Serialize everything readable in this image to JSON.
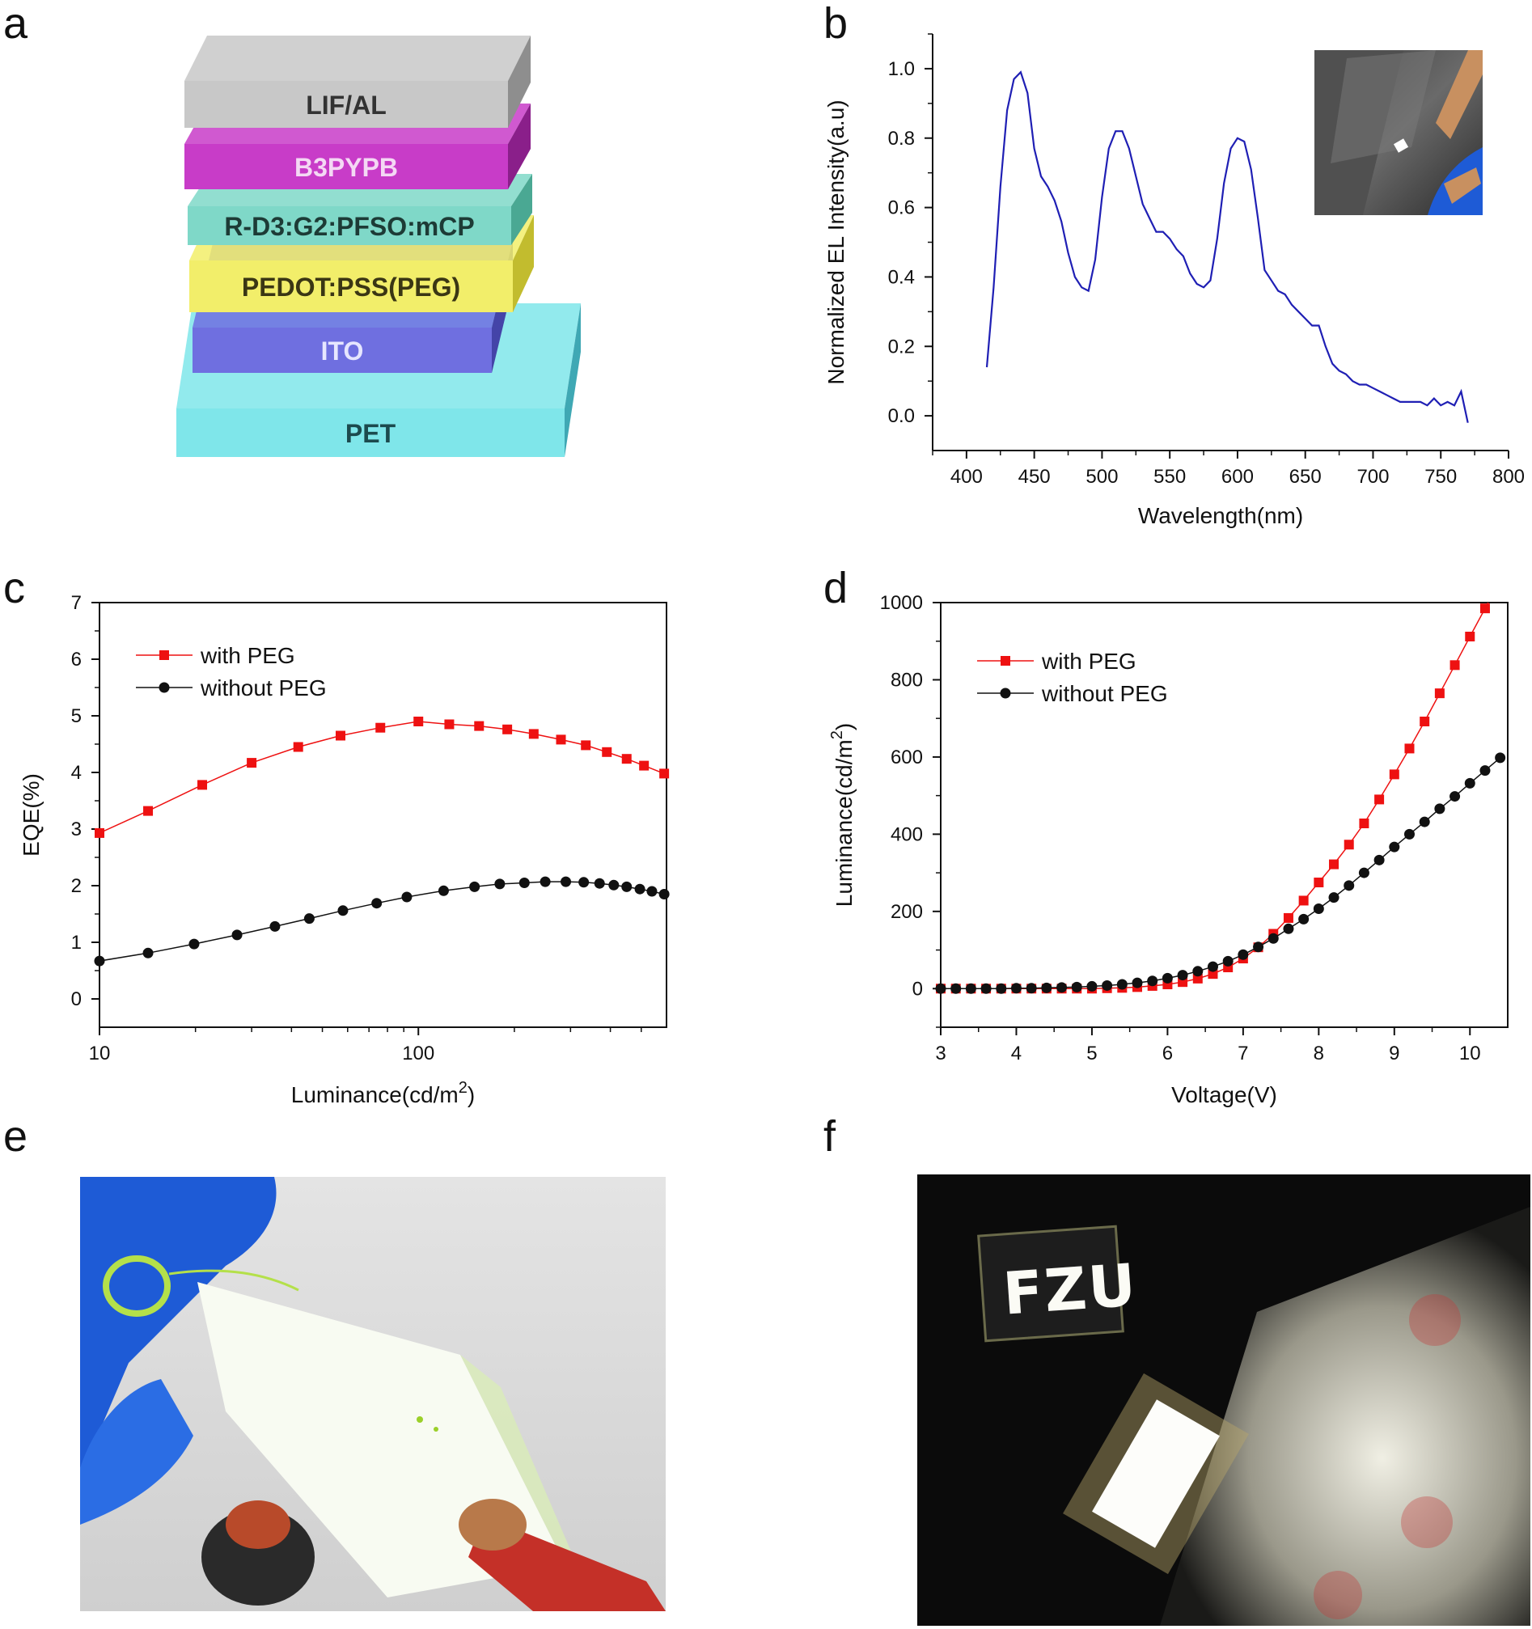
{
  "panels": {
    "a": "a",
    "b": "b",
    "c": "c",
    "d": "d",
    "e": "e",
    "f": "f"
  },
  "stack": {
    "layers": [
      {
        "label": "LIF/AL",
        "color": "#c8c8c8",
        "side": "#8e8e8e",
        "text_color": "#333333"
      },
      {
        "label": "B3PYPB",
        "color": "#c83cc8",
        "side": "#8a1f8a",
        "text_color": "#f4d8f4"
      },
      {
        "label": "R-D3:G2:PFSO:mCP",
        "color": "#7fd8c8",
        "side": "#4aa893",
        "text_color": "#1d3b36"
      },
      {
        "label": "PEDOT:PSS(PEG)",
        "color": "#f2ee6a",
        "side": "#c2bc2e",
        "text_color": "#3a3614"
      },
      {
        "label": "ITO",
        "color": "#6f6fe0",
        "side": "#4444a8",
        "text_color": "#e6e6ff"
      },
      {
        "label": "PET",
        "color": "#7fe6ea",
        "side": "#3fa8b4",
        "text_color": "#1c4a4e"
      }
    ]
  },
  "chart_data": [
    {
      "panel": "b",
      "type": "line",
      "xlabel": "Wavelength(nm)",
      "ylabel": "Normalized EL Intensity(a.u)",
      "xlim": [
        375,
        800
      ],
      "ylim": [
        -0.1,
        1.1
      ],
      "xticks": [
        400,
        450,
        500,
        550,
        600,
        650,
        700,
        750,
        800
      ],
      "yticks": [
        0.0,
        0.2,
        0.4,
        0.6,
        0.8,
        1.0
      ],
      "ytick_labels": [
        "0.0",
        "0.2",
        "0.4",
        "0.6",
        "0.8",
        "1.0"
      ],
      "series": [
        {
          "color": "#1f1fb4",
          "x": [
            415,
            420,
            425,
            430,
            435,
            440,
            445,
            450,
            455,
            460,
            465,
            470,
            475,
            480,
            485,
            490,
            495,
            500,
            505,
            510,
            515,
            520,
            525,
            530,
            535,
            540,
            545,
            550,
            555,
            560,
            565,
            570,
            575,
            580,
            585,
            590,
            595,
            600,
            605,
            610,
            615,
            620,
            625,
            630,
            635,
            640,
            645,
            650,
            655,
            660,
            665,
            670,
            675,
            680,
            685,
            690,
            695,
            700,
            705,
            710,
            715,
            720,
            725,
            730,
            735,
            740,
            745,
            750,
            755,
            760,
            765,
            770
          ],
          "y": [
            0.14,
            0.37,
            0.66,
            0.88,
            0.97,
            0.99,
            0.93,
            0.77,
            0.69,
            0.66,
            0.62,
            0.56,
            0.47,
            0.4,
            0.37,
            0.36,
            0.45,
            0.63,
            0.77,
            0.82,
            0.82,
            0.77,
            0.69,
            0.61,
            0.57,
            0.53,
            0.53,
            0.51,
            0.48,
            0.46,
            0.41,
            0.38,
            0.37,
            0.39,
            0.51,
            0.67,
            0.77,
            0.8,
            0.79,
            0.71,
            0.57,
            0.42,
            0.39,
            0.36,
            0.35,
            0.32,
            0.3,
            0.28,
            0.26,
            0.26,
            0.2,
            0.15,
            0.13,
            0.12,
            0.1,
            0.09,
            0.09,
            0.08,
            0.07,
            0.06,
            0.05,
            0.04,
            0.04,
            0.04,
            0.04,
            0.03,
            0.05,
            0.03,
            0.04,
            0.03,
            0.07,
            -0.02
          ]
        }
      ]
    },
    {
      "panel": "c",
      "type": "line",
      "xlabel": "Luminance(cd/m",
      "xlabel_sup": "2",
      "xlabel_end": ")",
      "ylabel": "EQE(%)",
      "xscale": "log",
      "xlim": [
        10,
        600
      ],
      "ylim": [
        -0.5,
        7
      ],
      "xticks": [
        10,
        100
      ],
      "yticks": [
        0,
        1,
        2,
        3,
        4,
        5,
        6,
        7
      ],
      "legend": "top-left",
      "series": [
        {
          "name": "with PEG",
          "color": "#ee1111",
          "marker": "square",
          "x": [
            10,
            14.2,
            21,
            30,
            42,
            57,
            76,
            100,
            125,
            155,
            190,
            230,
            280,
            335,
            390,
            450,
            510,
            590
          ],
          "y": [
            2.93,
            3.32,
            3.78,
            4.17,
            4.45,
            4.65,
            4.79,
            4.9,
            4.85,
            4.82,
            4.76,
            4.68,
            4.58,
            4.48,
            4.36,
            4.24,
            4.12,
            3.98
          ]
        },
        {
          "name": "without PEG",
          "color": "#111111",
          "marker": "circle",
          "x": [
            10,
            14.2,
            19.8,
            27,
            35.5,
            45.5,
            58,
            74,
            92,
            120,
            150,
            180,
            215,
            250,
            290,
            330,
            370,
            410,
            450,
            495,
            540,
            590
          ],
          "y": [
            0.67,
            0.81,
            0.97,
            1.13,
            1.28,
            1.42,
            1.56,
            1.69,
            1.8,
            1.91,
            1.98,
            2.03,
            2.05,
            2.07,
            2.07,
            2.06,
            2.04,
            2.01,
            1.98,
            1.94,
            1.9,
            1.85
          ]
        }
      ]
    },
    {
      "panel": "d",
      "type": "line",
      "xlabel": "Voltage(V)",
      "ylabel": "Luminance(cd/m",
      "ylabel_sup": "2",
      "ylabel_end": ")",
      "xlim": [
        3,
        10.5
      ],
      "ylim": [
        -100,
        1000
      ],
      "xticks": [
        3,
        4,
        5,
        6,
        7,
        8,
        9,
        10
      ],
      "yticks": [
        0,
        200,
        400,
        600,
        800,
        1000
      ],
      "legend": "top-left",
      "series": [
        {
          "name": "with PEG",
          "color": "#ee1111",
          "marker": "square",
          "x": [
            3.0,
            3.2,
            3.4,
            3.6,
            3.8,
            4.0,
            4.2,
            4.4,
            4.6,
            4.8,
            5.0,
            5.2,
            5.4,
            5.6,
            5.8,
            6.0,
            6.2,
            6.4,
            6.6,
            6.8,
            7.0,
            7.2,
            7.4,
            7.6,
            7.8,
            8.0,
            8.2,
            8.4,
            8.6,
            8.8,
            9.0,
            9.2,
            9.4,
            9.6,
            9.8,
            10.0,
            10.2,
            10.4
          ],
          "y": [
            0,
            0,
            0,
            0,
            0,
            0,
            0,
            0,
            0,
            0,
            0,
            1,
            2,
            4,
            7,
            11,
            17,
            26,
            38,
            55,
            78,
            107,
            142,
            183,
            228,
            275,
            322,
            373,
            428,
            490,
            555,
            622,
            692,
            765,
            838,
            912,
            985,
            1060
          ]
        },
        {
          "name": "without PEG",
          "color": "#111111",
          "marker": "circle",
          "x": [
            3.0,
            3.2,
            3.4,
            3.6,
            3.8,
            4.0,
            4.2,
            4.4,
            4.6,
            4.8,
            5.0,
            5.2,
            5.4,
            5.6,
            5.8,
            6.0,
            6.2,
            6.4,
            6.6,
            6.8,
            7.0,
            7.2,
            7.4,
            7.6,
            7.8,
            8.0,
            8.2,
            8.4,
            8.6,
            8.8,
            9.0,
            9.2,
            9.4,
            9.6,
            9.8,
            10.0,
            10.2,
            10.4
          ],
          "y": [
            0,
            0,
            0,
            0,
            0,
            1,
            1,
            2,
            3,
            4,
            6,
            8,
            11,
            15,
            20,
            27,
            35,
            45,
            57,
            71,
            88,
            108,
            130,
            155,
            180,
            207,
            236,
            267,
            300,
            333,
            367,
            400,
            432,
            466,
            498,
            532,
            565,
            598
          ]
        }
      ]
    }
  ],
  "inset_b": {
    "colors": [
      "#4a4a4a",
      "#d4a574",
      "#1e5bd6"
    ]
  },
  "photo_e": {
    "colors": [
      "#d8d8d8",
      "#1e5bd6",
      "#f4fbe4",
      "#b4e04a",
      "#b84a2a"
    ]
  },
  "photo_f": {
    "text": "FZU",
    "colors": [
      "#0a0a0a",
      "#f6f6ee",
      "#c43a3a"
    ]
  }
}
